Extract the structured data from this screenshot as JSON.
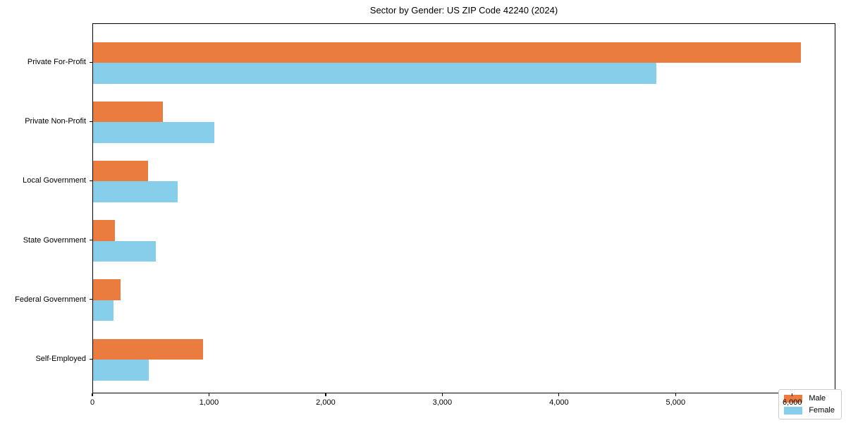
{
  "chart_data": {
    "type": "bar",
    "orientation": "horizontal",
    "title": "Sector by Gender: US ZIP Code 42240 (2024)",
    "categories": [
      "Private For-Profit",
      "Private Non-Profit",
      "Local Government",
      "State Government",
      "Federal Government",
      "Self-Employed"
    ],
    "series": [
      {
        "name": "Male",
        "color": "#E97C3E",
        "values": [
          6065,
          600,
          470,
          190,
          235,
          940
        ]
      },
      {
        "name": "Female",
        "color": "#87CEEB",
        "values": [
          4830,
          1040,
          725,
          540,
          175,
          480
        ]
      }
    ],
    "xlabel": "",
    "ylabel": "",
    "xlim": [
      0,
      6370
    ],
    "xticks": [
      0,
      1000,
      2000,
      3000,
      4000,
      5000,
      6000
    ],
    "grid": false,
    "legend_position": "lower right",
    "axis_color": "#000000",
    "legend_border_color": "#cccccc",
    "background_color": "#ffffff"
  }
}
